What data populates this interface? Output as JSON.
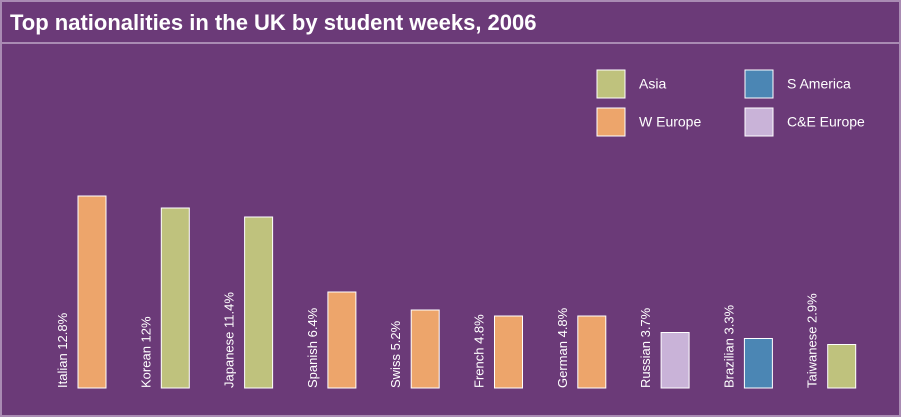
{
  "chart_data": {
    "type": "bar",
    "title": "Top nationalities in the UK by student weeks, 2006",
    "categories": [
      "Italian",
      "Korean",
      "Japanese",
      "Spanish",
      "Swiss",
      "French",
      "German",
      "Russian",
      "Brazilian",
      "Taiwanese"
    ],
    "series": [
      {
        "name": "Asia",
        "color": "#bfc27d",
        "values": [
          null,
          12,
          11.4,
          null,
          null,
          null,
          null,
          null,
          null,
          2.9
        ],
        "value_labels": [
          null,
          "12%",
          "11.4%",
          null,
          null,
          null,
          null,
          null,
          null,
          "2.9%"
        ]
      },
      {
        "name": "W Europe",
        "color": "#eda56b",
        "values": [
          12.8,
          null,
          null,
          6.4,
          5.2,
          4.8,
          4.8,
          null,
          null,
          null
        ],
        "value_labels": [
          "12.8%",
          null,
          null,
          "6.4%",
          "5.2%",
          "4.8%",
          "4.8%",
          null,
          null,
          null
        ]
      },
      {
        "name": "S America",
        "color": "#4b86b4",
        "values": [
          null,
          null,
          null,
          null,
          null,
          null,
          null,
          null,
          3.3,
          null
        ],
        "value_labels": [
          null,
          null,
          null,
          null,
          null,
          null,
          null,
          null,
          "3.3%",
          null
        ]
      },
      {
        "name": "C&E Europe",
        "color": "#c9b3d8",
        "values": [
          null,
          null,
          null,
          null,
          null,
          null,
          null,
          3.7,
          null,
          null
        ],
        "value_labels": [
          null,
          null,
          null,
          null,
          null,
          null,
          null,
          "3.7%",
          null,
          null
        ]
      }
    ]
  }
}
